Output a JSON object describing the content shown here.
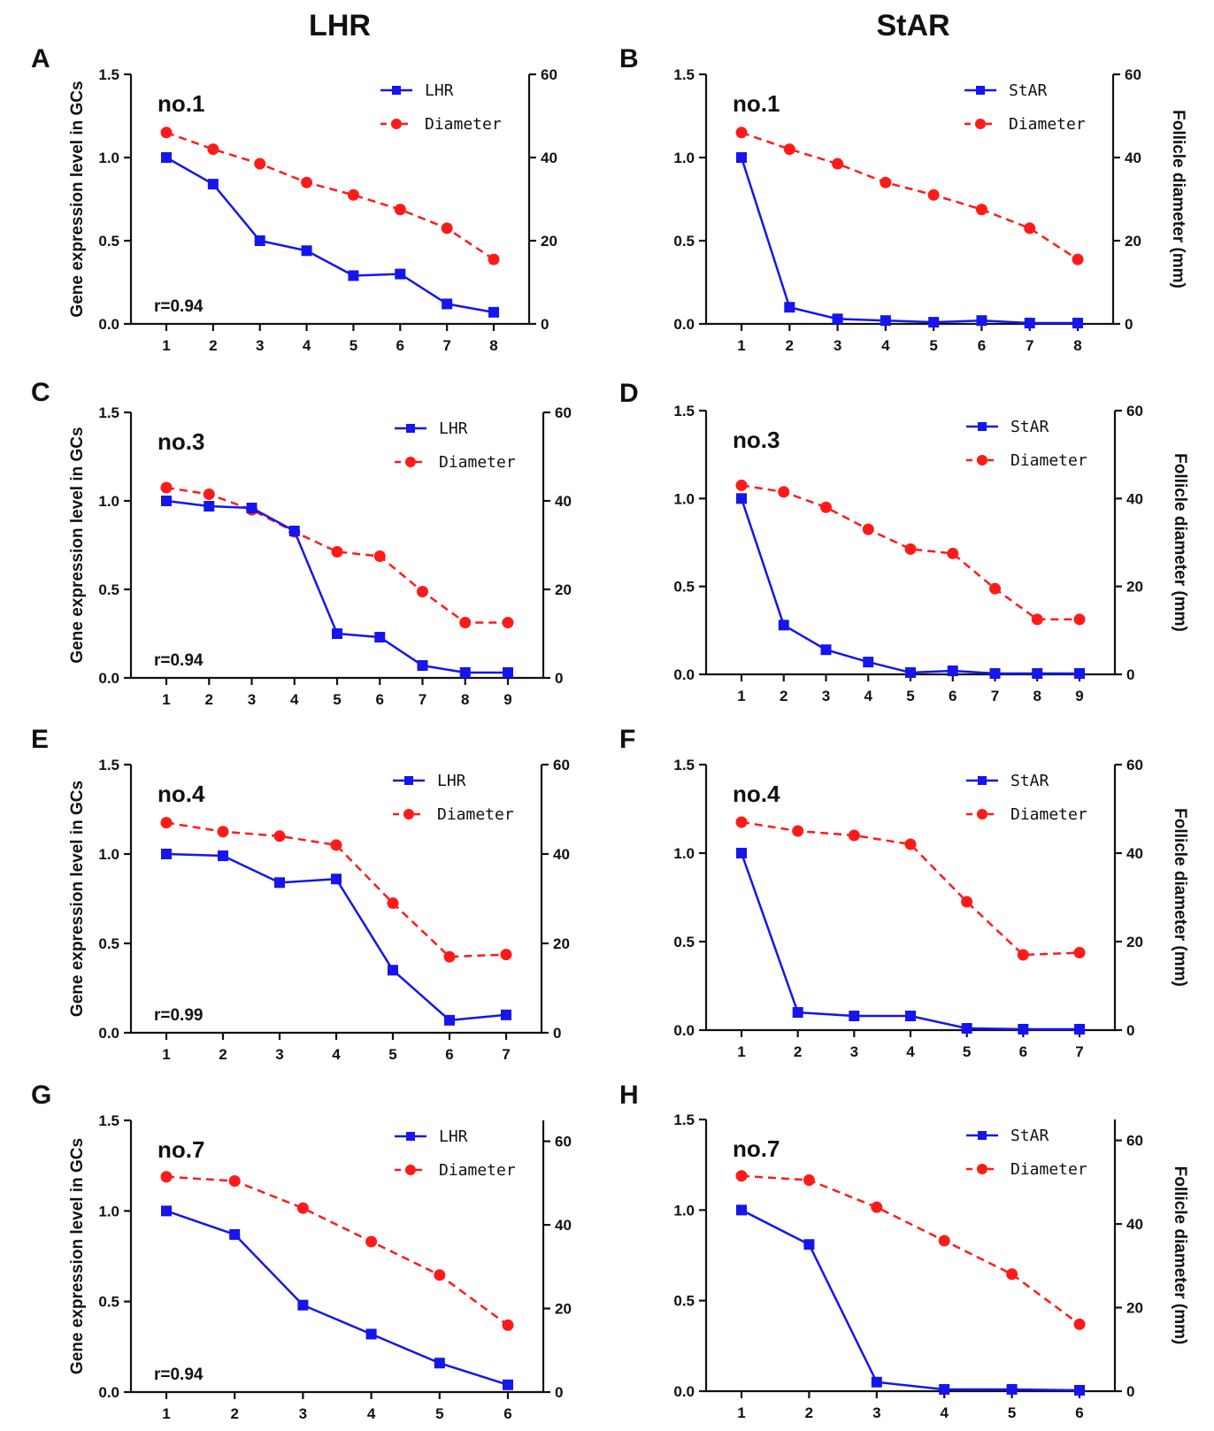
{
  "column_titles": {
    "left": "LHR",
    "right": "StAR"
  },
  "colors": {
    "expression": "#1515ee",
    "diameter": "#ff1a1a",
    "axis": "#111111"
  },
  "legend_labels": {
    "diameter": "Diameter"
  },
  "y_axis_labels": {
    "left": "Gene expression level in GCs",
    "right": "Follicle diameter (mm)"
  },
  "chart_data": [
    {
      "panel": "A",
      "type": "line",
      "gene": "LHR",
      "sample": "no.1",
      "r": "r=0.94",
      "x": [
        1,
        2,
        3,
        4,
        5,
        6,
        7,
        8
      ],
      "series": [
        {
          "name": "LHR",
          "axis": "left",
          "style": "solid-square",
          "values": [
            1.0,
            0.84,
            0.5,
            0.44,
            0.29,
            0.3,
            0.12,
            0.07
          ]
        },
        {
          "name": "Diameter",
          "axis": "right",
          "style": "dashed-circle",
          "values": [
            46,
            42,
            38.5,
            34,
            31,
            27.5,
            23,
            15.5
          ]
        }
      ],
      "ylim_left": [
        0,
        1.5
      ],
      "yticks_left": [
        "0.0",
        "0.5",
        "1.0",
        "1.5"
      ],
      "ylim_right": [
        0,
        60
      ],
      "yticks_right": [
        "0",
        "20",
        "40",
        "60"
      ],
      "ylabel_left": "Gene expression level in GCs",
      "ylabel_right": ""
    },
    {
      "panel": "B",
      "type": "line",
      "gene": "StAR",
      "sample": "no.1",
      "r": "",
      "x": [
        1,
        2,
        3,
        4,
        5,
        6,
        7,
        8
      ],
      "series": [
        {
          "name": "StAR",
          "axis": "left",
          "style": "solid-square",
          "values": [
            1.0,
            0.1,
            0.03,
            0.02,
            0.01,
            0.02,
            0.005,
            0.005
          ]
        },
        {
          "name": "Diameter",
          "axis": "right",
          "style": "dashed-circle",
          "values": [
            46,
            42,
            38.5,
            34,
            31,
            27.5,
            23,
            15.5
          ]
        }
      ],
      "ylim_left": [
        0,
        1.5
      ],
      "yticks_left": [
        "0.0",
        "0.5",
        "1.0",
        "1.5"
      ],
      "ylim_right": [
        0,
        60
      ],
      "yticks_right": [
        "0",
        "20",
        "40",
        "60"
      ],
      "ylabel_left": "",
      "ylabel_right": "Follicle diameter (mm)"
    },
    {
      "panel": "C",
      "type": "line",
      "gene": "LHR",
      "sample": "no.3",
      "r": "r=0.94",
      "x": [
        1,
        2,
        3,
        4,
        5,
        6,
        7,
        8,
        9
      ],
      "series": [
        {
          "name": "LHR",
          "axis": "left",
          "style": "solid-square",
          "values": [
            1.0,
            0.97,
            0.96,
            0.83,
            0.25,
            0.23,
            0.07,
            0.03,
            0.03
          ]
        },
        {
          "name": "Diameter",
          "axis": "right",
          "style": "dashed-circle",
          "values": [
            43,
            41.5,
            38,
            33,
            28.5,
            27.5,
            19.5,
            12.5,
            12.5
          ]
        }
      ],
      "ylim_left": [
        0,
        1.5
      ],
      "yticks_left": [
        "0.0",
        "0.5",
        "1.0",
        "1.5"
      ],
      "ylim_right": [
        0,
        60
      ],
      "yticks_right": [
        "0",
        "20",
        "40",
        "60"
      ],
      "ylabel_left": "Gene expression level in GCs",
      "ylabel_right": ""
    },
    {
      "panel": "D",
      "type": "line",
      "gene": "StAR",
      "sample": "no.3",
      "r": "",
      "x": [
        1,
        2,
        3,
        4,
        5,
        6,
        7,
        8,
        9
      ],
      "series": [
        {
          "name": "StAR",
          "axis": "left",
          "style": "solid-square",
          "values": [
            1.0,
            0.28,
            0.14,
            0.07,
            0.01,
            0.02,
            0.005,
            0.005,
            0.005
          ]
        },
        {
          "name": "Diameter",
          "axis": "right",
          "style": "dashed-circle",
          "values": [
            43,
            41.5,
            38,
            33,
            28.5,
            27.5,
            19.5,
            12.5,
            12.5
          ]
        }
      ],
      "ylim_left": [
        0,
        1.5
      ],
      "yticks_left": [
        "0.0",
        "0.5",
        "1.0",
        "1.5"
      ],
      "ylim_right": [
        0,
        60
      ],
      "yticks_right": [
        "0",
        "20",
        "40",
        "60"
      ],
      "ylabel_left": "",
      "ylabel_right": "Follicle diameter (mm)"
    },
    {
      "panel": "E",
      "type": "line",
      "gene": "LHR",
      "sample": "no.4",
      "r": "r=0.99",
      "x": [
        1,
        2,
        3,
        4,
        5,
        6,
        7
      ],
      "series": [
        {
          "name": "LHR",
          "axis": "left",
          "style": "solid-square",
          "values": [
            1.0,
            0.99,
            0.84,
            0.86,
            0.35,
            0.07,
            0.1
          ]
        },
        {
          "name": "Diameter",
          "axis": "right",
          "style": "dashed-circle",
          "values": [
            47,
            45,
            44,
            42,
            29,
            17,
            17.5
          ]
        }
      ],
      "ylim_left": [
        0,
        1.5
      ],
      "yticks_left": [
        "0.0",
        "0.5",
        "1.0",
        "1.5"
      ],
      "ylim_right": [
        0,
        60
      ],
      "yticks_right": [
        "0",
        "20",
        "40",
        "60"
      ],
      "ylabel_left": "Gene expression level in GCs",
      "ylabel_right": ""
    },
    {
      "panel": "F",
      "type": "line",
      "gene": "StAR",
      "sample": "no.4",
      "r": "",
      "x": [
        1,
        2,
        3,
        4,
        5,
        6,
        7
      ],
      "series": [
        {
          "name": "StAR",
          "axis": "left",
          "style": "solid-square",
          "values": [
            1.0,
            0.1,
            0.08,
            0.08,
            0.01,
            0.005,
            0.005
          ]
        },
        {
          "name": "Diameter",
          "axis": "right",
          "style": "dashed-circle",
          "values": [
            47,
            45,
            44,
            42,
            29,
            17,
            17.5
          ]
        }
      ],
      "ylim_left": [
        0,
        1.5
      ],
      "yticks_left": [
        "0.0",
        "0.5",
        "1.0",
        "1.5"
      ],
      "ylim_right": [
        0,
        60
      ],
      "yticks_right": [
        "0",
        "20",
        "40",
        "60"
      ],
      "ylabel_left": "",
      "ylabel_right": "Follicle diameter (mm)"
    },
    {
      "panel": "G",
      "type": "line",
      "gene": "LHR",
      "sample": "no.7",
      "r": "r=0.94",
      "x": [
        1,
        2,
        3,
        4,
        5,
        6
      ],
      "series": [
        {
          "name": "LHR",
          "axis": "left",
          "style": "solid-square",
          "values": [
            1.0,
            0.87,
            0.48,
            0.32,
            0.16,
            0.04
          ]
        },
        {
          "name": "Diameter",
          "axis": "right",
          "style": "dashed-circle",
          "values": [
            51.5,
            50.5,
            44,
            36,
            28,
            16
          ]
        }
      ],
      "ylim_left": [
        0,
        1.5
      ],
      "yticks_left": [
        "0.0",
        "0.5",
        "1.0",
        "1.5"
      ],
      "ylim_right": [
        0,
        65
      ],
      "yticks_right": [
        "0",
        "20",
        "40",
        "60"
      ],
      "ylabel_left": "Gene expression level in GCs",
      "ylabel_right": ""
    },
    {
      "panel": "H",
      "type": "line",
      "gene": "StAR",
      "sample": "no.7",
      "r": "",
      "x": [
        1,
        2,
        3,
        4,
        5,
        6
      ],
      "series": [
        {
          "name": "StAR",
          "axis": "left",
          "style": "solid-square",
          "values": [
            1.0,
            0.81,
            0.05,
            0.01,
            0.01,
            0.005
          ]
        },
        {
          "name": "Diameter",
          "axis": "right",
          "style": "dashed-circle",
          "values": [
            51.5,
            50.5,
            44,
            36,
            28,
            16
          ]
        }
      ],
      "ylim_left": [
        0,
        1.5
      ],
      "yticks_left": [
        "0.0",
        "0.5",
        "1.0",
        "1.5"
      ],
      "ylim_right": [
        0,
        65
      ],
      "yticks_right": [
        "0",
        "20",
        "40",
        "60"
      ],
      "ylabel_left": "",
      "ylabel_right": "Follicle diameter (mm)"
    }
  ]
}
